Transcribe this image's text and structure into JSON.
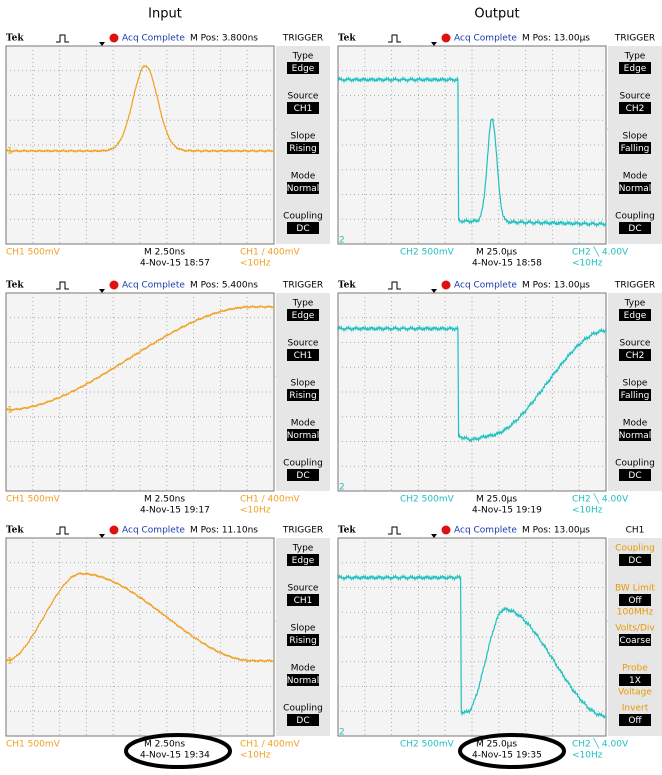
{
  "headers": [
    "Input",
    "Output"
  ],
  "panels": [
    {
      "brand": "Tek",
      "status": "Acq Complete",
      "mpos": "M Pos: 3.800ns",
      "menu_title": "TRIGGER",
      "menu_label_color": "#000000",
      "trace_color": "#f0a020",
      "marker": "1",
      "menu": [
        {
          "label": "Type",
          "value": "Edge"
        },
        {
          "label": "Source",
          "value": "CH1"
        },
        {
          "label": "Slope",
          "value": "Rising"
        },
        {
          "label": "Mode",
          "value": "Normal"
        },
        {
          "label": "Coupling",
          "value": "DC"
        }
      ],
      "channel": "CH1  500mV",
      "timebase": "M 2.50ns",
      "datetime": "4-Nov-15 18:57",
      "trigger": "CH1 ∕ 400mV",
      "freq": "<10Hz"
    },
    {
      "brand": "Tek",
      "status": "Acq Complete",
      "mpos": "M Pos: 13.00μs",
      "menu_title": "TRIGGER",
      "menu_label_color": "#000000",
      "trace_color": "#20c0c0",
      "marker": "2",
      "menu": [
        {
          "label": "Type",
          "value": "Edge"
        },
        {
          "label": "Source",
          "value": "CH2"
        },
        {
          "label": "Slope",
          "value": "Falling"
        },
        {
          "label": "Mode",
          "value": "Normal"
        },
        {
          "label": "Coupling",
          "value": "DC"
        }
      ],
      "channel": "CH2  500mV",
      "timebase": "M 25.0μs",
      "datetime": "4-Nov-15 18:58",
      "trigger": "CH2 ╲ 4.00V",
      "freq": "<10Hz"
    },
    {
      "brand": "Tek",
      "status": "Acq Complete",
      "mpos": "M Pos: 5.400ns",
      "menu_title": "TRIGGER",
      "menu_label_color": "#000000",
      "trace_color": "#f0a020",
      "marker": "1",
      "menu": [
        {
          "label": "Type",
          "value": "Edge"
        },
        {
          "label": "Source",
          "value": "CH1"
        },
        {
          "label": "Slope",
          "value": "Rising"
        },
        {
          "label": "Mode",
          "value": "Normal"
        },
        {
          "label": "Coupling",
          "value": "DC"
        }
      ],
      "channel": "CH1  500mV",
      "timebase": "M 2.50ns",
      "datetime": "4-Nov-15 19:17",
      "trigger": "CH1 ∕ 400mV",
      "freq": "<10Hz"
    },
    {
      "brand": "Tek",
      "status": "Acq Complete",
      "mpos": "M Pos: 13.00μs",
      "menu_title": "TRIGGER",
      "menu_label_color": "#000000",
      "trace_color": "#20c0c0",
      "marker": "2",
      "menu": [
        {
          "label": "Type",
          "value": "Edge"
        },
        {
          "label": "Source",
          "value": "CH2"
        },
        {
          "label": "Slope",
          "value": "Falling"
        },
        {
          "label": "Mode",
          "value": "Normal"
        },
        {
          "label": "Coupling",
          "value": "DC"
        }
      ],
      "channel": "CH2  500mV",
      "timebase": "M 25.0μs",
      "datetime": "4-Nov-15 19:19",
      "trigger": "CH2 ╲ 4.00V",
      "freq": "<10Hz"
    },
    {
      "brand": "Tek",
      "status": "Acq Complete",
      "mpos": "M Pos: 11.10ns",
      "menu_title": "TRIGGER",
      "menu_label_color": "#000000",
      "trace_color": "#f0a020",
      "marker": "1",
      "menu": [
        {
          "label": "Type",
          "value": "Edge"
        },
        {
          "label": "Source",
          "value": "CH1"
        },
        {
          "label": "Slope",
          "value": "Rising"
        },
        {
          "label": "Mode",
          "value": "Normal"
        },
        {
          "label": "Coupling",
          "value": "DC"
        }
      ],
      "channel": "CH1  500mV",
      "timebase": "M 2.50ns",
      "datetime": "4-Nov-15 19:34",
      "trigger": "CH1 ∕ 400mV",
      "freq": "<10Hz"
    },
    {
      "brand": "Tek",
      "status": "Acq Complete",
      "mpos": "M Pos: 13.00μs",
      "menu_title": "CH1",
      "menu_label_color": "#e89a00",
      "trace_color": "#20c0c0",
      "marker": "2",
      "menu": [
        {
          "label": "Coupling",
          "value": "DC"
        },
        {
          "label": "BW Limit",
          "value": "Off",
          "note": "100MHz"
        },
        {
          "label": "Volts/Div",
          "value": "Coarse"
        },
        {
          "label": "Probe",
          "value": "1X",
          "note": "Voltage"
        },
        {
          "label": "Invert",
          "value": "Off"
        }
      ],
      "channel": "CH2  500mV",
      "timebase": "M 25.0μs",
      "datetime": "4-Nov-15 19:35",
      "trigger": "CH2 ╲ 4.00V",
      "freq": "<10Hz"
    }
  ]
}
